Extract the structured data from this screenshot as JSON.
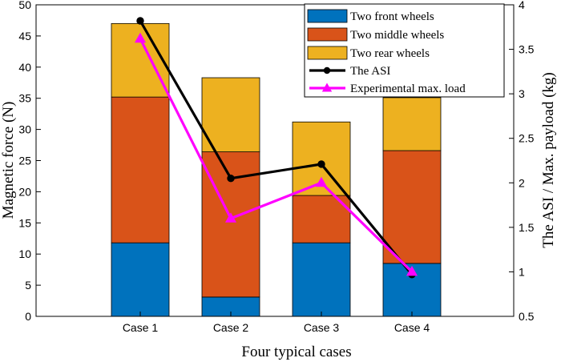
{
  "chart_data": {
    "type": "bar",
    "stacked": true,
    "categories": [
      "Case 1",
      "Case 2",
      "Case 3",
      "Case 4"
    ],
    "xlabel": "Four typical cases",
    "ylabel_left": "Magnetic force (N)",
    "ylabel_right": "The ASI / Max. payload (kg)",
    "ylim_left": [
      0,
      50
    ],
    "yticks_left": [
      0,
      5,
      10,
      15,
      20,
      25,
      30,
      35,
      40,
      45,
      50
    ],
    "ylim_right": [
      0.5,
      4
    ],
    "yticks_right": [
      0.5,
      1,
      1.5,
      2,
      2.5,
      3,
      3.5,
      4
    ],
    "grid": false,
    "legend_position": "top-right",
    "bar_series": [
      {
        "name": "Two front wheels",
        "color": "#0072BD",
        "values": [
          11.8,
          3.1,
          11.8,
          8.5
        ]
      },
      {
        "name": "Two middle wheels",
        "color": "#D95319",
        "values": [
          23.4,
          23.3,
          7.6,
          18.1
        ]
      },
      {
        "name": "Two rear wheels",
        "color": "#EDB120",
        "values": [
          11.8,
          11.9,
          11.8,
          8.5
        ]
      }
    ],
    "line_series": [
      {
        "name": "The ASI",
        "color": "#000000",
        "marker": "circle",
        "axis": "right",
        "values": [
          3.82,
          2.05,
          2.21,
          0.97
        ]
      },
      {
        "name": "Experimental max. load",
        "color": "#FF00FF",
        "marker": "triangle",
        "axis": "right",
        "values": [
          3.62,
          1.6,
          2.0,
          1.0
        ]
      }
    ]
  }
}
